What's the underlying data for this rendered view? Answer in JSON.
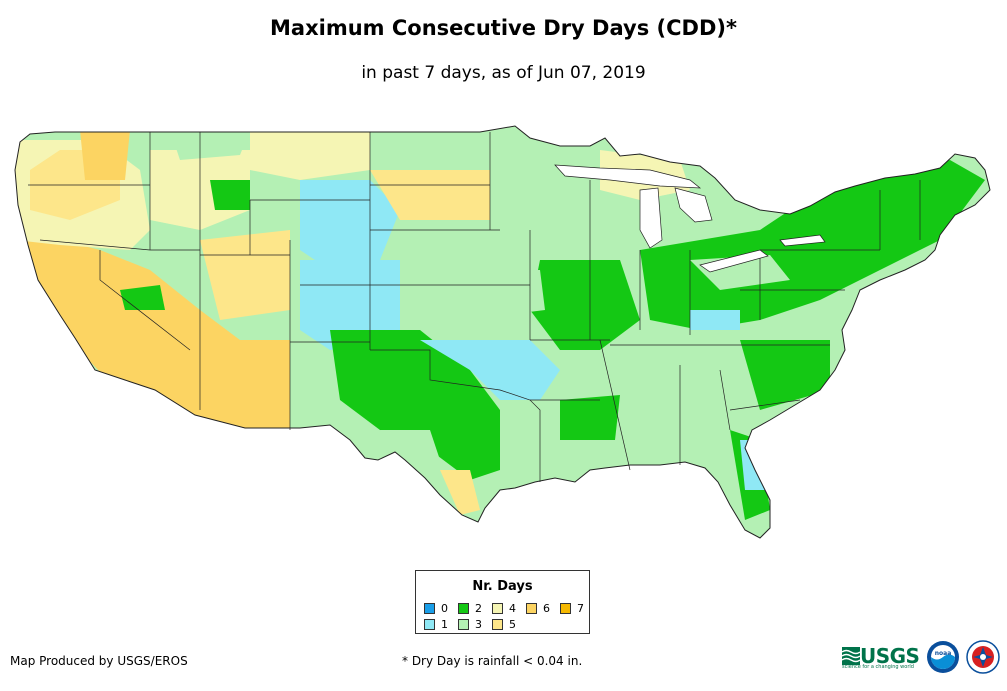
{
  "header": {
    "title": "Maximum Consecutive Dry Days (CDD)*",
    "subtitle": "in past 7 days, as of Jun 07, 2019"
  },
  "legend": {
    "title": "Nr. Days",
    "items": [
      {
        "label": "0",
        "color": "#1a9ee8"
      },
      {
        "label": "1",
        "color": "#8fe8f5"
      },
      {
        "label": "2",
        "color": "#14c814"
      },
      {
        "label": "3",
        "color": "#b4f0b4"
      },
      {
        "label": "4",
        "color": "#f5f5b4"
      },
      {
        "label": "5",
        "color": "#fde68a"
      },
      {
        "label": "6",
        "color": "#fcd462"
      },
      {
        "label": "7",
        "color": "#f5b800"
      }
    ]
  },
  "footer": {
    "credit": "Map Produced by USGS/EROS",
    "note": "* Dry Day is rainfall < 0.04 in."
  },
  "logos": {
    "usgs": "USGS",
    "usgs_tagline": "science for a changing world",
    "noaa": "noaa"
  }
}
